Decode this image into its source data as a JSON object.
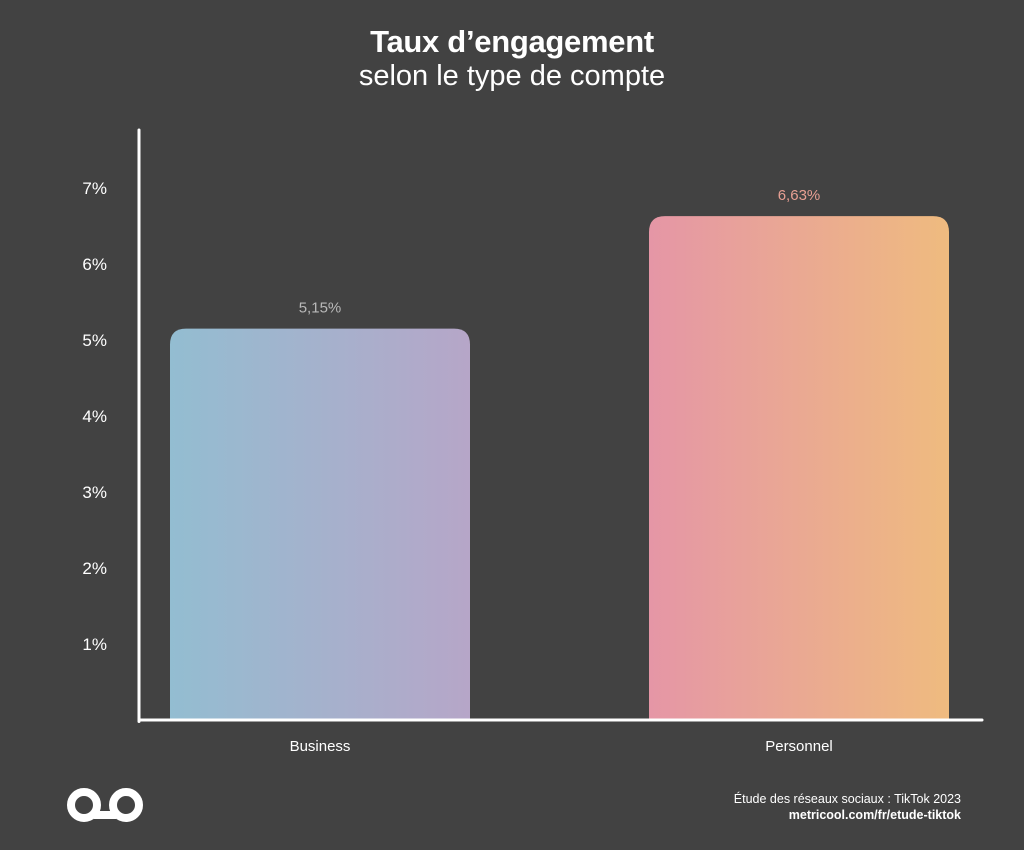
{
  "colors": {
    "background": "#424242",
    "axis": "#ffffff",
    "business_gradient": [
      "#93bdd1",
      "#b6a6c8"
    ],
    "personnel_gradient": [
      "#e596a6",
      "#efbb7f"
    ],
    "business_label": "#b9b9b9",
    "personnel_label": "#e79f93"
  },
  "chart_data": {
    "type": "bar",
    "title": "Taux d’engagement",
    "subtitle": "selon le type de compte",
    "categories": [
      "Business",
      "Personnel"
    ],
    "values": [
      5.15,
      6.63
    ],
    "data_labels": [
      "5,15%",
      "6,63%"
    ],
    "yticks": [
      {
        "value": 1,
        "label": "1%"
      },
      {
        "value": 2,
        "label": "2%"
      },
      {
        "value": 3,
        "label": "3%"
      },
      {
        "value": 4,
        "label": "4%"
      },
      {
        "value": 5,
        "label": "5%"
      },
      {
        "value": 6,
        "label": "6%"
      },
      {
        "value": 7,
        "label": "7%"
      }
    ],
    "ylim": [
      0,
      7.6
    ],
    "grid": false,
    "legend": "none"
  },
  "footer": {
    "source": "Étude des réseaux sociaux : TikTok 2023",
    "url": "metricool.com/fr/etude-tiktok",
    "logo_icon": "metricool-infinity-logo"
  }
}
